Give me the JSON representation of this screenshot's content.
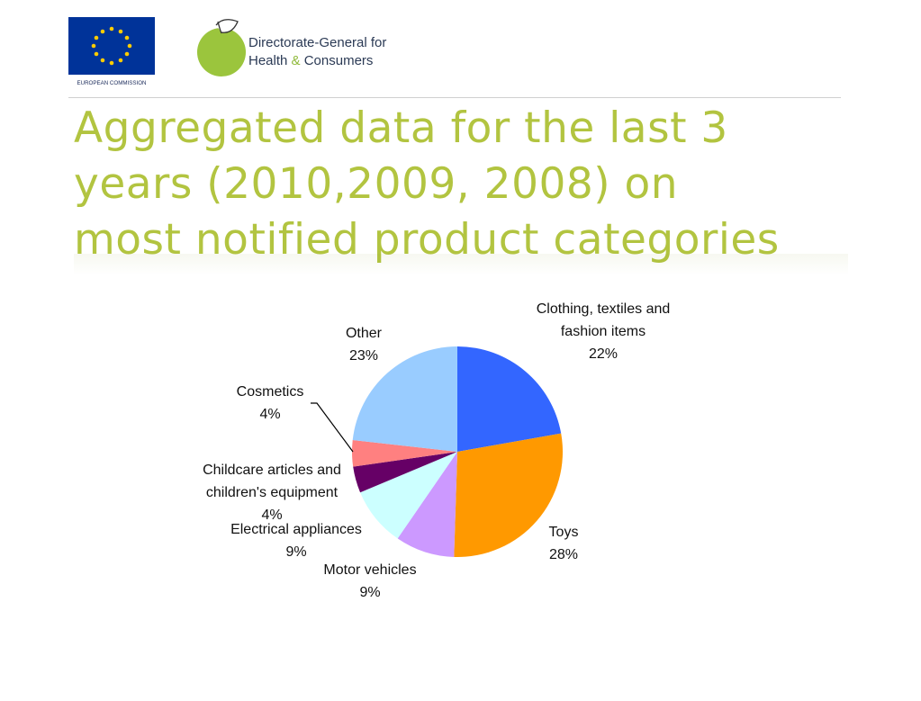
{
  "header": {
    "eu_logo_caption": "EUROPEAN COMMISSION",
    "dg_line1": "Directorate-General for",
    "dg_line2_a": "Health",
    "dg_line2_amp": "&",
    "dg_line2_b": "Consumers"
  },
  "title": {
    "line1": "Aggregated data for the last 3",
    "line2": "years (2010,2009, 2008) on",
    "line3": "most notified product categories"
  },
  "chart_data": {
    "type": "pie",
    "title": "",
    "slices": [
      {
        "name": "Clothing, textiles and fashion items",
        "value": 22,
        "label": "22%",
        "color": "#3366ff"
      },
      {
        "name": "Toys",
        "value": 28,
        "label": "28%",
        "color": "#ff9900"
      },
      {
        "name": "Motor vehicles",
        "value": 9,
        "label": "9%",
        "color": "#cc99ff"
      },
      {
        "name": "Electrical appliances",
        "value": 9,
        "label": "9%",
        "color": "#ccffff"
      },
      {
        "name": "Childcare articles and children's equipment",
        "value": 4,
        "label": "4%",
        "color": "#660066"
      },
      {
        "name": "Cosmetics",
        "value": 4,
        "label": "4%",
        "color": "#ff8080"
      },
      {
        "name": "Other",
        "value": 23,
        "label": "23%",
        "color": "#99ccff"
      }
    ],
    "start_angle_deg": 0,
    "direction": "clockwise",
    "legend": "none"
  }
}
